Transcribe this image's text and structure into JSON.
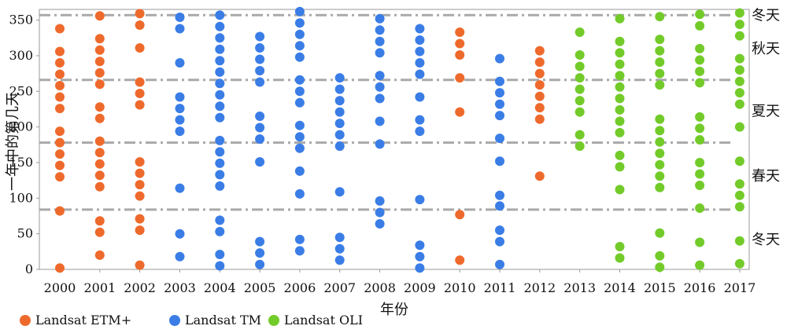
{
  "chart_data": {
    "type": "scatter",
    "title": "",
    "xlabel": "年份",
    "ylabel": "一年中的第几天",
    "xlim": [
      2000,
      2017
    ],
    "ylim": [
      0,
      365
    ],
    "x_ticks": [
      "2000",
      "2001",
      "2002",
      "2003",
      "2004",
      "2005",
      "2006",
      "2007",
      "2008",
      "2009",
      "2010",
      "2011",
      "2012",
      "2013",
      "2014",
      "2015",
      "2016",
      "2017"
    ],
    "y_ticks": [
      "0",
      "50",
      "100",
      "150",
      "200",
      "250",
      "300",
      "350"
    ],
    "grid": false,
    "season_boundaries": [
      84,
      178,
      266,
      357
    ],
    "season_labels": [
      {
        "text": "冬天",
        "y": 357
      },
      {
        "text": "秋天",
        "y": 310
      },
      {
        "text": "夏天",
        "y": 222
      },
      {
        "text": "春天",
        "y": 131
      },
      {
        "text": "冬天",
        "y": 42
      }
    ],
    "colors": {
      "etm": "#ee6a2c",
      "tm": "#3a7de6",
      "oli": "#73cb2a",
      "dash": "#a9a9a9"
    },
    "legend": [
      {
        "label": "Landsat ETM+",
        "color": "#ee6a2c"
      },
      {
        "label": "Landsat TM",
        "color": "#3a7de6"
      },
      {
        "label": "Landsat OLI",
        "color": "#73cb2a"
      }
    ],
    "series": [
      {
        "name": "Landsat ETM+",
        "color": "#ee6a2c",
        "points": [
          [
            2000,
            2
          ],
          [
            2000,
            82
          ],
          [
            2000,
            130
          ],
          [
            2000,
            146
          ],
          [
            2000,
            162
          ],
          [
            2000,
            178
          ],
          [
            2000,
            194
          ],
          [
            2000,
            226
          ],
          [
            2000,
            242
          ],
          [
            2000,
            258
          ],
          [
            2000,
            274
          ],
          [
            2000,
            290
          ],
          [
            2000,
            306
          ],
          [
            2000,
            338
          ],
          [
            2001,
            20
          ],
          [
            2001,
            52
          ],
          [
            2001,
            68
          ],
          [
            2001,
            116
          ],
          [
            2001,
            132
          ],
          [
            2001,
            148
          ],
          [
            2001,
            164
          ],
          [
            2001,
            180
          ],
          [
            2001,
            212
          ],
          [
            2001,
            228
          ],
          [
            2001,
            260
          ],
          [
            2001,
            276
          ],
          [
            2001,
            292
          ],
          [
            2001,
            308
          ],
          [
            2001,
            324
          ],
          [
            2001,
            356
          ],
          [
            2002,
            6
          ],
          [
            2002,
            55
          ],
          [
            2002,
            71
          ],
          [
            2002,
            103
          ],
          [
            2002,
            119
          ],
          [
            2002,
            135
          ],
          [
            2002,
            151
          ],
          [
            2002,
            231
          ],
          [
            2002,
            247
          ],
          [
            2002,
            263
          ],
          [
            2002,
            311
          ],
          [
            2002,
            343
          ],
          [
            2002,
            359
          ],
          [
            2010,
            13
          ],
          [
            2010,
            77
          ],
          [
            2010,
            221
          ],
          [
            2010,
            269
          ],
          [
            2010,
            301
          ],
          [
            2010,
            317
          ],
          [
            2010,
            333
          ],
          [
            2012,
            131
          ],
          [
            2012,
            211
          ],
          [
            2012,
            227
          ],
          [
            2012,
            243
          ],
          [
            2012,
            259
          ],
          [
            2012,
            275
          ],
          [
            2012,
            291
          ],
          [
            2012,
            307
          ]
        ]
      },
      {
        "name": "Landsat TM",
        "color": "#3a7de6",
        "points": [
          [
            2003,
            18
          ],
          [
            2003,
            50
          ],
          [
            2003,
            114
          ],
          [
            2003,
            194
          ],
          [
            2003,
            210
          ],
          [
            2003,
            226
          ],
          [
            2003,
            242
          ],
          [
            2003,
            290
          ],
          [
            2003,
            338
          ],
          [
            2003,
            354
          ],
          [
            2004,
            5
          ],
          [
            2004,
            21
          ],
          [
            2004,
            53
          ],
          [
            2004,
            69
          ],
          [
            2004,
            117
          ],
          [
            2004,
            133
          ],
          [
            2004,
            149
          ],
          [
            2004,
            165
          ],
          [
            2004,
            181
          ],
          [
            2004,
            213
          ],
          [
            2004,
            229
          ],
          [
            2004,
            245
          ],
          [
            2004,
            261
          ],
          [
            2004,
            277
          ],
          [
            2004,
            293
          ],
          [
            2004,
            309
          ],
          [
            2004,
            325
          ],
          [
            2004,
            341
          ],
          [
            2004,
            357
          ],
          [
            2005,
            7
          ],
          [
            2005,
            23
          ],
          [
            2005,
            39
          ],
          [
            2005,
            151
          ],
          [
            2005,
            183
          ],
          [
            2005,
            199
          ],
          [
            2005,
            215
          ],
          [
            2005,
            263
          ],
          [
            2005,
            279
          ],
          [
            2005,
            295
          ],
          [
            2005,
            311
          ],
          [
            2005,
            327
          ],
          [
            2006,
            26
          ],
          [
            2006,
            42
          ],
          [
            2006,
            106
          ],
          [
            2006,
            138
          ],
          [
            2006,
            170
          ],
          [
            2006,
            186
          ],
          [
            2006,
            202
          ],
          [
            2006,
            234
          ],
          [
            2006,
            250
          ],
          [
            2006,
            266
          ],
          [
            2006,
            298
          ],
          [
            2006,
            314
          ],
          [
            2006,
            330
          ],
          [
            2006,
            346
          ],
          [
            2006,
            362
          ],
          [
            2007,
            13
          ],
          [
            2007,
            29
          ],
          [
            2007,
            45
          ],
          [
            2007,
            109
          ],
          [
            2007,
            173
          ],
          [
            2007,
            189
          ],
          [
            2007,
            205
          ],
          [
            2007,
            221
          ],
          [
            2007,
            237
          ],
          [
            2007,
            253
          ],
          [
            2007,
            269
          ],
          [
            2008,
            64
          ],
          [
            2008,
            80
          ],
          [
            2008,
            96
          ],
          [
            2008,
            176
          ],
          [
            2008,
            208
          ],
          [
            2008,
            240
          ],
          [
            2008,
            256
          ],
          [
            2008,
            272
          ],
          [
            2008,
            304
          ],
          [
            2008,
            320
          ],
          [
            2008,
            336
          ],
          [
            2008,
            352
          ],
          [
            2009,
            2
          ],
          [
            2009,
            18
          ],
          [
            2009,
            34
          ],
          [
            2009,
            98
          ],
          [
            2009,
            194
          ],
          [
            2009,
            210
          ],
          [
            2009,
            242
          ],
          [
            2009,
            274
          ],
          [
            2009,
            290
          ],
          [
            2009,
            306
          ],
          [
            2009,
            322
          ],
          [
            2009,
            338
          ],
          [
            2011,
            7
          ],
          [
            2011,
            39
          ],
          [
            2011,
            55
          ],
          [
            2011,
            89
          ],
          [
            2011,
            104
          ],
          [
            2011,
            152
          ],
          [
            2011,
            184
          ],
          [
            2011,
            216
          ],
          [
            2011,
            232
          ],
          [
            2011,
            248
          ],
          [
            2011,
            264
          ],
          [
            2011,
            296
          ]
        ]
      },
      {
        "name": "Landsat OLI",
        "color": "#73cb2a",
        "points": [
          [
            2013,
            173
          ],
          [
            2013,
            189
          ],
          [
            2013,
            221
          ],
          [
            2013,
            237
          ],
          [
            2013,
            253
          ],
          [
            2013,
            269
          ],
          [
            2013,
            285
          ],
          [
            2013,
            301
          ],
          [
            2013,
            333
          ],
          [
            2014,
            16
          ],
          [
            2014,
            32
          ],
          [
            2014,
            112
          ],
          [
            2014,
            144
          ],
          [
            2014,
            160
          ],
          [
            2014,
            192
          ],
          [
            2014,
            208
          ],
          [
            2014,
            224
          ],
          [
            2014,
            240
          ],
          [
            2014,
            256
          ],
          [
            2014,
            272
          ],
          [
            2014,
            288
          ],
          [
            2014,
            304
          ],
          [
            2014,
            320
          ],
          [
            2014,
            352
          ],
          [
            2015,
            3
          ],
          [
            2015,
            19
          ],
          [
            2015,
            51
          ],
          [
            2015,
            115
          ],
          [
            2015,
            131
          ],
          [
            2015,
            147
          ],
          [
            2015,
            163
          ],
          [
            2015,
            179
          ],
          [
            2015,
            195
          ],
          [
            2015,
            211
          ],
          [
            2015,
            259
          ],
          [
            2015,
            275
          ],
          [
            2015,
            291
          ],
          [
            2015,
            307
          ],
          [
            2015,
            323
          ],
          [
            2015,
            355
          ],
          [
            2016,
            6
          ],
          [
            2016,
            38
          ],
          [
            2016,
            86
          ],
          [
            2016,
            118
          ],
          [
            2016,
            134
          ],
          [
            2016,
            150
          ],
          [
            2016,
            182
          ],
          [
            2016,
            198
          ],
          [
            2016,
            214
          ],
          [
            2016,
            262
          ],
          [
            2016,
            278
          ],
          [
            2016,
            294
          ],
          [
            2016,
            310
          ],
          [
            2016,
            342
          ],
          [
            2016,
            358
          ],
          [
            2017,
            8
          ],
          [
            2017,
            40
          ],
          [
            2017,
            88
          ],
          [
            2017,
            104
          ],
          [
            2017,
            120
          ],
          [
            2017,
            152
          ],
          [
            2017,
            200
          ],
          [
            2017,
            232
          ],
          [
            2017,
            248
          ],
          [
            2017,
            264
          ],
          [
            2017,
            280
          ],
          [
            2017,
            296
          ],
          [
            2017,
            328
          ],
          [
            2017,
            344
          ],
          [
            2017,
            360
          ]
        ]
      }
    ]
  }
}
